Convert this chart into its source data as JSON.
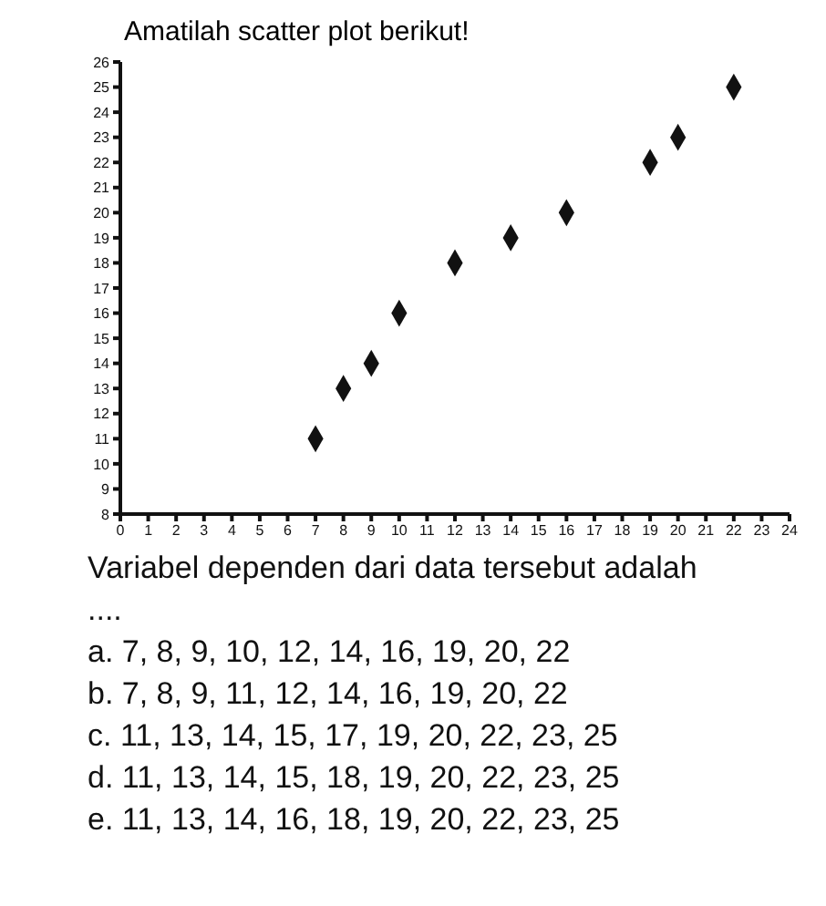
{
  "chart_data": {
    "type": "scatter",
    "title": "Amatilah scatter plot berikut!",
    "x": [
      7,
      8,
      9,
      10,
      12,
      14,
      16,
      19,
      20,
      22
    ],
    "values": [
      11,
      13,
      14,
      16,
      18,
      19,
      20,
      22,
      23,
      25
    ],
    "color": "#111111",
    "marker": "diamond",
    "xlim": [
      0,
      24
    ],
    "xticks": [
      0,
      1,
      2,
      3,
      4,
      5,
      6,
      7,
      8,
      9,
      10,
      11,
      12,
      13,
      14,
      15,
      16,
      17,
      18,
      19,
      20,
      21,
      22,
      23,
      24
    ],
    "ylim": [
      8,
      26
    ],
    "yticks": [
      8,
      9,
      10,
      11,
      12,
      13,
      14,
      15,
      16,
      17,
      18,
      19,
      20,
      21,
      22,
      23,
      24,
      25,
      26
    ],
    "annotations": [
      "Variabel dependen dari data tersebut adalah",
      "....",
      "a.  7, 8, 9, 10, 12, 14, 16, 19, 20, 22",
      "b.  7, 8, 9, 11, 12, 14, 16, 19, 20, 22",
      "c.  11, 13, 14, 15, 17, 19, 20, 22, 23, 25",
      "d.  11, 13, 14, 15, 18, 19, 20, 22, 23, 25",
      "e.  11, 13, 14, 16, 18, 19, 20, 22, 23, 25"
    ]
  }
}
